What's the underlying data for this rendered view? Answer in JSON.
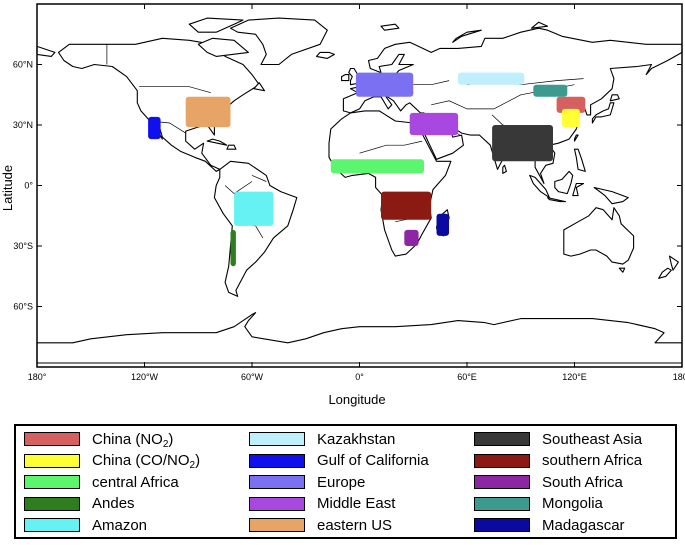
{
  "map": {
    "xlabel": "Longitude",
    "ylabel": "Latitude",
    "lon_ticks": [
      "180°",
      "120°W",
      "60°W",
      "0°",
      "60°E",
      "120°E",
      "180°"
    ],
    "lat_ticks": [
      "60°N",
      "30°N",
      "0°",
      "30°S",
      "60°S"
    ],
    "projection": "equirectangular",
    "lon_range": [
      -180,
      180
    ],
    "lat_range": [
      -90,
      90
    ]
  },
  "legend": {
    "items": [
      {
        "label": "China (NO",
        "sub": "2",
        "suffix": ")",
        "color": "#d65f5f"
      },
      {
        "label": "China (CO/NO",
        "sub": "2",
        "suffix": ")",
        "color": "#ffff33"
      },
      {
        "label": "central Africa",
        "sub": "",
        "suffix": "",
        "color": "#5cf56e"
      },
      {
        "label": "Andes",
        "sub": "",
        "suffix": "",
        "color": "#2e7d1e"
      },
      {
        "label": "Amazon",
        "sub": "",
        "suffix": "",
        "color": "#66f2f2"
      },
      {
        "label": "Kazakhstan",
        "sub": "",
        "suffix": "",
        "color": "#bfeefc"
      },
      {
        "label": "Gulf of California",
        "sub": "",
        "suffix": "",
        "color": "#1010ee"
      },
      {
        "label": "Europe",
        "sub": "",
        "suffix": "",
        "color": "#7b70f2"
      },
      {
        "label": "Middle East",
        "sub": "",
        "suffix": "",
        "color": "#a848e0"
      },
      {
        "label": "eastern US",
        "sub": "",
        "suffix": "",
        "color": "#e6a566"
      },
      {
        "label": "Southeast Asia",
        "sub": "",
        "suffix": "",
        "color": "#383838"
      },
      {
        "label": "southern Africa",
        "sub": "",
        "suffix": "",
        "color": "#8b1a12"
      },
      {
        "label": "South Africa",
        "sub": "",
        "suffix": "",
        "color": "#8d26a3"
      },
      {
        "label": "Mongolia",
        "sub": "",
        "suffix": "",
        "color": "#3c9a8f"
      },
      {
        "label": "Madagascar",
        "sub": "",
        "suffix": "",
        "color": "#0a0aa0"
      }
    ]
  },
  "regions": [
    {
      "name": "China (NO2)",
      "color": "#d65f5f",
      "lon_range": [
        110,
        126
      ],
      "lat_range": [
        36,
        44
      ]
    },
    {
      "name": "China (CO/NO2)",
      "color": "#ffff33",
      "lon_range": [
        113,
        123
      ],
      "lat_range": [
        29,
        38
      ]
    },
    {
      "name": "central Africa",
      "color": "#5cf56e",
      "lon_range": [
        -16,
        36
      ],
      "lat_range": [
        6,
        13
      ]
    },
    {
      "name": "Andes",
      "color": "#2e7d1e",
      "lon_range": [
        -72,
        -69
      ],
      "lat_range": [
        -40,
        -22
      ]
    },
    {
      "name": "Amazon",
      "color": "#66f2f2",
      "lon_range": [
        -70,
        -48
      ],
      "lat_range": [
        -20,
        -3
      ]
    },
    {
      "name": "Kazakhstan",
      "color": "#bfeefc",
      "lon_range": [
        55,
        92
      ],
      "lat_range": [
        50,
        56
      ]
    },
    {
      "name": "Gulf of California",
      "color": "#1010ee",
      "lon_range": [
        -118,
        -111
      ],
      "lat_range": [
        23,
        34
      ]
    },
    {
      "name": "Europe",
      "color": "#7b70f2",
      "lon_range": [
        -2,
        30
      ],
      "lat_range": [
        44,
        56
      ]
    },
    {
      "name": "Middle East",
      "color": "#a848e0",
      "lon_range": [
        28,
        55
      ],
      "lat_range": [
        25,
        36
      ]
    },
    {
      "name": "eastern US",
      "color": "#e6a566",
      "lon_range": [
        -97,
        -72
      ],
      "lat_range": [
        29,
        44
      ]
    },
    {
      "name": "Southeast Asia",
      "color": "#383838",
      "lon_range": [
        74,
        108
      ],
      "lat_range": [
        12,
        30
      ]
    },
    {
      "name": "southern Africa",
      "color": "#8b1a12",
      "lon_range": [
        12,
        40
      ],
      "lat_range": [
        -17,
        -3
      ]
    },
    {
      "name": "South Africa",
      "color": "#8d26a3",
      "lon_range": [
        25,
        33
      ],
      "lat_range": [
        -30,
        -22
      ]
    },
    {
      "name": "Mongolia",
      "color": "#3c9a8f",
      "lon_range": [
        97,
        116
      ],
      "lat_range": [
        44,
        50
      ]
    },
    {
      "name": "Madagascar",
      "color": "#0a0aa0",
      "lon_range": [
        43,
        50
      ],
      "lat_range": [
        -25,
        -14
      ]
    }
  ]
}
